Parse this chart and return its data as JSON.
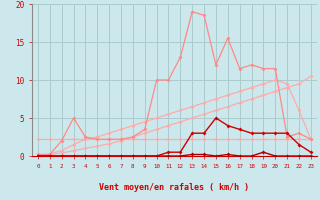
{
  "xlabel": "Vent moyen/en rafales ( km/h )",
  "background_color": "#cce8ec",
  "grid_color": "#aacccc",
  "x": [
    0,
    1,
    2,
    3,
    4,
    5,
    6,
    7,
    8,
    9,
    10,
    11,
    12,
    13,
    14,
    15,
    16,
    17,
    18,
    19,
    20,
    21,
    22,
    23
  ],
  "line_flat": [
    2.2,
    2.2,
    2.2,
    2.2,
    2.2,
    2.2,
    2.2,
    2.2,
    2.2,
    2.2,
    2.2,
    2.2,
    2.2,
    2.2,
    2.2,
    2.2,
    2.2,
    2.2,
    2.2,
    2.2,
    2.2,
    2.2,
    2.2,
    2.2
  ],
  "line_rise1": [
    0.0,
    0.2,
    0.4,
    0.7,
    1.0,
    1.3,
    1.6,
    2.0,
    2.5,
    3.0,
    3.5,
    4.0,
    4.5,
    5.0,
    5.5,
    6.0,
    6.5,
    7.0,
    7.5,
    8.0,
    8.5,
    9.0,
    9.5,
    10.5
  ],
  "line_rise2": [
    0.0,
    0.3,
    0.7,
    1.5,
    2.2,
    2.5,
    3.0,
    3.5,
    4.0,
    4.5,
    5.0,
    5.5,
    6.0,
    6.5,
    7.0,
    7.5,
    8.0,
    8.5,
    9.0,
    9.5,
    10.0,
    9.5,
    6.0,
    2.2
  ],
  "line_peak": [
    0.2,
    0.2,
    2.0,
    5.0,
    2.5,
    2.2,
    2.2,
    2.2,
    2.5,
    3.5,
    10.0,
    10.0,
    13.0,
    19.0,
    18.5,
    12.0,
    15.5,
    11.5,
    12.0,
    11.5,
    11.5,
    2.5,
    3.0,
    2.2
  ],
  "line_med": [
    0.0,
    0.0,
    0.0,
    0.0,
    0.0,
    0.0,
    0.0,
    0.0,
    0.0,
    0.0,
    0.0,
    0.5,
    0.5,
    3.0,
    3.0,
    5.0,
    4.0,
    3.5,
    3.0,
    3.0,
    3.0,
    3.0,
    1.5,
    0.5
  ],
  "line_low": [
    0.0,
    0.0,
    0.0,
    0.0,
    0.0,
    0.0,
    0.0,
    0.0,
    0.0,
    0.0,
    0.0,
    0.0,
    0.0,
    0.2,
    0.2,
    0.0,
    0.2,
    0.0,
    0.0,
    0.5,
    0.0,
    0.0,
    0.0,
    0.0
  ],
  "ylim": [
    0,
    20
  ],
  "yticks": [
    0,
    5,
    10,
    15,
    20
  ],
  "arrow_dirs": [
    225,
    45,
    315,
    45,
    45,
    225,
    315,
    315,
    315,
    270,
    45,
    270,
    45,
    45,
    45,
    45,
    45,
    45,
    45,
    225,
    45,
    225,
    315,
    315
  ]
}
